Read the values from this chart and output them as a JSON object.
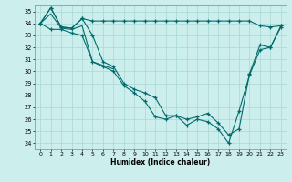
{
  "xlabel": "Humidex (Indice chaleur)",
  "background_color": "#cceeed",
  "grid_color": "#aad8d6",
  "line_color": "#006b6b",
  "xlim": [
    -0.5,
    23.5
  ],
  "ylim": [
    23.5,
    35.5
  ],
  "yticks": [
    24,
    25,
    26,
    27,
    28,
    29,
    30,
    31,
    32,
    33,
    34,
    35
  ],
  "xticks": [
    0,
    1,
    2,
    3,
    4,
    5,
    6,
    7,
    8,
    9,
    10,
    11,
    12,
    13,
    14,
    15,
    16,
    17,
    18,
    19,
    20,
    21,
    22,
    23
  ],
  "series1_x": [
    0,
    1,
    2,
    3,
    4,
    5,
    6,
    7,
    8,
    9,
    10,
    11,
    12,
    13,
    14,
    15,
    16,
    17,
    18,
    19,
    20,
    21,
    22,
    23
  ],
  "series1_y": [
    34.0,
    35.3,
    33.7,
    33.6,
    34.4,
    34.2,
    34.2,
    34.2,
    34.2,
    34.2,
    34.2,
    34.2,
    34.2,
    34.2,
    34.2,
    34.2,
    34.2,
    34.2,
    34.2,
    34.2,
    34.2,
    33.8,
    33.7,
    33.8
  ],
  "series2_x": [
    0,
    1,
    2,
    3,
    4,
    5,
    6,
    7,
    8,
    9,
    10,
    11,
    12,
    13,
    14,
    15,
    16,
    17,
    18,
    19,
    20,
    21,
    22,
    23
  ],
  "series2_y": [
    34.0,
    35.3,
    33.7,
    33.6,
    34.4,
    33.0,
    30.8,
    30.4,
    29.0,
    28.5,
    28.2,
    27.8,
    26.3,
    26.3,
    26.0,
    26.2,
    26.5,
    25.7,
    24.7,
    25.2,
    29.8,
    32.2,
    32.0,
    33.8
  ],
  "series3_x": [
    0,
    1,
    2,
    3,
    4,
    5,
    6,
    7
  ],
  "series3_y": [
    34.0,
    34.8,
    33.6,
    33.5,
    33.8,
    30.8,
    30.5,
    30.2
  ],
  "series4_x": [
    0,
    1,
    2,
    3,
    4,
    5,
    6,
    7,
    8,
    9,
    10,
    11,
    12,
    13,
    14,
    15,
    16,
    17,
    18,
    19,
    20,
    21,
    22,
    23
  ],
  "series4_y": [
    34.0,
    33.5,
    33.5,
    33.2,
    33.0,
    30.8,
    30.4,
    30.0,
    28.8,
    28.2,
    27.5,
    26.2,
    26.0,
    26.3,
    25.5,
    26.0,
    25.8,
    25.2,
    24.0,
    26.7,
    29.7,
    31.8,
    32.0,
    33.7
  ]
}
